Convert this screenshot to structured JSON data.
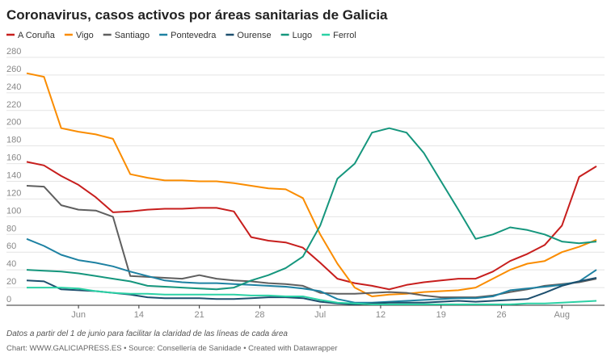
{
  "chart_data": {
    "type": "line",
    "title": "Coronavirus, casos activos por áreas sanitarias de Galicia",
    "note": "Datos a partir del 1 de junio para facilitar la claridad de las líneas de cada área",
    "source": "Chart: WWW.GALICIAPRESS.ES • Source: Consellería de Sanidade • Created with Datawrapper",
    "x": [
      1,
      3,
      5,
      7,
      9,
      11,
      13,
      15,
      17,
      19,
      21,
      23,
      25,
      27,
      29,
      31,
      33,
      35,
      37,
      39,
      41,
      43,
      45,
      47,
      49,
      51,
      53,
      55,
      57,
      59,
      61,
      63,
      65,
      67
    ],
    "xlim": [
      1,
      67
    ],
    "xticks": [
      {
        "value": 7,
        "label": "Jun"
      },
      14,
      21,
      28,
      {
        "value": 35,
        "label": "Jul"
      },
      {
        "value": 42,
        "label": "12"
      },
      {
        "value": 49,
        "label": "19"
      },
      {
        "value": 56,
        "label": "26"
      },
      {
        "value": 63,
        "label": "Aug"
      }
    ],
    "ylim": [
      0,
      280
    ],
    "yticks": [
      0,
      20,
      40,
      60,
      80,
      100,
      120,
      140,
      160,
      180,
      200,
      220,
      240,
      260,
      280
    ],
    "grid": true,
    "series": [
      {
        "name": "A Coruña",
        "color": "#c71e1d",
        "values": [
          162,
          158,
          146,
          136,
          122,
          105,
          106,
          108,
          109,
          109,
          110,
          110,
          106,
          77,
          73,
          71,
          65,
          48,
          30,
          25,
          22,
          18,
          23,
          26,
          28,
          30,
          30,
          38,
          50,
          58,
          68,
          90,
          145,
          157
        ]
      },
      {
        "name": "Vigo",
        "color": "#fa8c00",
        "values": [
          262,
          258,
          200,
          196,
          193,
          188,
          148,
          144,
          141,
          141,
          140,
          140,
          138,
          135,
          132,
          131,
          121,
          80,
          47,
          20,
          10,
          12,
          13,
          15,
          16,
          17,
          20,
          30,
          40,
          47,
          50,
          60,
          66,
          74
        ]
      },
      {
        "name": "Santiago",
        "color": "#5f5f5f",
        "values": [
          135,
          134,
          113,
          108,
          107,
          100,
          33,
          32,
          31,
          30,
          34,
          30,
          28,
          27,
          25,
          24,
          22,
          14,
          13,
          13,
          14,
          15,
          14,
          11,
          9,
          9,
          9,
          11,
          15,
          18,
          22,
          24,
          26,
          30
        ]
      },
      {
        "name": "Pontevedra",
        "color": "#1d81a2",
        "values": [
          75,
          67,
          57,
          51,
          48,
          44,
          38,
          33,
          28,
          26,
          25,
          25,
          24,
          23,
          22,
          21,
          19,
          16,
          7,
          3,
          3,
          4,
          5,
          6,
          7,
          8,
          8,
          10,
          17,
          19,
          21,
          23,
          27,
          40
        ]
      },
      {
        "name": "Ourense",
        "color": "#1d4f6e",
        "values": [
          28,
          27,
          18,
          17,
          16,
          14,
          12,
          9,
          8,
          8,
          8,
          7,
          7,
          8,
          9,
          9,
          8,
          4,
          2,
          1,
          2,
          3,
          3,
          3,
          4,
          5,
          4,
          5,
          6,
          7,
          14,
          22,
          27,
          31
        ]
      },
      {
        "name": "Lugo",
        "color": "#15967d",
        "values": [
          40,
          39,
          38,
          36,
          33,
          30,
          27,
          22,
          21,
          20,
          19,
          18,
          20,
          28,
          34,
          42,
          55,
          90,
          143,
          160,
          195,
          200,
          195,
          172,
          140,
          108,
          75,
          80,
          88,
          85,
          80,
          72,
          70,
          72
        ]
      },
      {
        "name": "Ferrol",
        "color": "#2bd1a5",
        "values": [
          20,
          20,
          20,
          19,
          16,
          14,
          13,
          13,
          12,
          12,
          12,
          12,
          12,
          11,
          11,
          10,
          10,
          6,
          3,
          2,
          1,
          1,
          1,
          1,
          1,
          1,
          1,
          1,
          1,
          2,
          2,
          3,
          4,
          5
        ]
      }
    ]
  }
}
